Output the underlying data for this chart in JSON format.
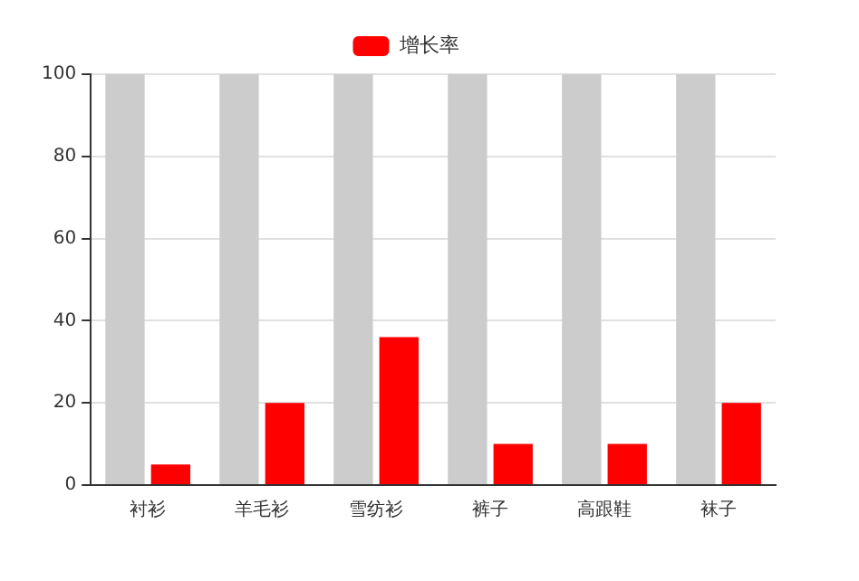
{
  "chart_data": {
    "type": "bar",
    "categories": [
      "衬衫",
      "羊毛衫",
      "雪纺衫",
      "裤子",
      "高跟鞋",
      "袜子"
    ],
    "series": [
      {
        "color": "#cccccc",
        "values": [
          100,
          100,
          100,
          100,
          100,
          100
        ]
      },
      {
        "name": "增长率",
        "color": "#ff0000",
        "values": [
          5,
          20,
          36,
          10,
          10,
          20
        ]
      }
    ],
    "ylim": [
      0,
      100
    ],
    "yticks": [
      0,
      20,
      40,
      60,
      80,
      100
    ],
    "grid": "y",
    "legend": "top"
  }
}
